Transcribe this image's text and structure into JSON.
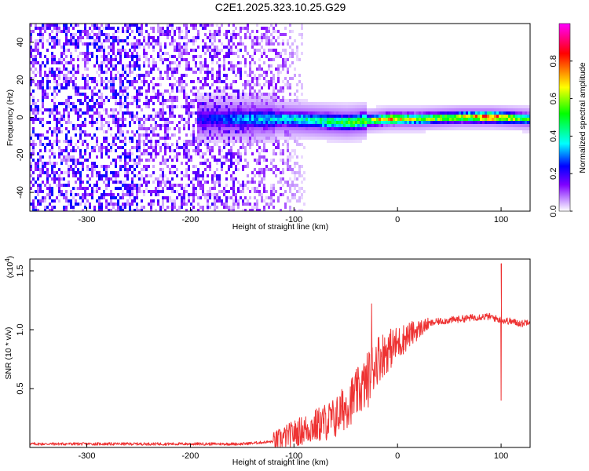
{
  "title": "C2E1.2025.323.10.25.G29",
  "chart_data": [
    {
      "type": "heatmap",
      "xlabel": "Height of straight line (km)",
      "ylabel": "Frequency (Hz)",
      "xlim": [
        -355,
        128
      ],
      "ylim": [
        -50,
        50
      ],
      "xticks": [
        -300,
        -200,
        -100,
        0,
        100
      ],
      "yticks": [
        -40,
        -20,
        0,
        20,
        40
      ],
      "xtick_labels": [
        "-300",
        "-200",
        "-100",
        "0",
        "100"
      ],
      "ytick_labels": [
        "-40",
        "-20",
        "0",
        "20",
        "40"
      ],
      "colorbar": {
        "label": "Normalized spectral amplitude",
        "range": [
          0,
          1
        ],
        "ticks": [
          0.0,
          0.2,
          0.4,
          0.6,
          0.8
        ],
        "tick_labels": [
          "0.0",
          "0.2",
          "0.4",
          "0.6",
          "0.8"
        ],
        "colormap": [
          "#ffffff",
          "#8000ff",
          "#0000ff",
          "#00ffff",
          "#00ff00",
          "#ffff00",
          "#ff0000",
          "#ff00ff"
        ]
      },
      "features": {
        "noise_region_x": [
          -355,
          -115
        ],
        "signal_ridge": [
          {
            "x": -185,
            "freq": 0,
            "amplitude": 0.25
          },
          {
            "x": -150,
            "freq": 0,
            "amplitude": 0.35
          },
          {
            "x": -110,
            "freq": 0,
            "amplitude": 0.4
          },
          {
            "x": -80,
            "freq": -1,
            "amplitude": 0.45
          },
          {
            "x": -50,
            "freq": -2,
            "amplitude": 0.55
          },
          {
            "x": -30,
            "freq": -1,
            "amplitude": 0.6
          },
          {
            "x": -10,
            "freq": 0,
            "amplitude": 0.8
          },
          {
            "x": 20,
            "freq": 0,
            "amplitude": 0.6
          },
          {
            "x": 60,
            "freq": 1,
            "amplitude": 0.65
          },
          {
            "x": 90,
            "freq": 1,
            "amplitude": 0.9
          },
          {
            "x": 125,
            "freq": 0,
            "amplitude": 0.55
          }
        ]
      }
    },
    {
      "type": "line",
      "xlabel": "Height of straight line (km)",
      "ylabel": "SNR (10 * v/v)",
      "y_scale_label": "(x10",
      "y_scale_exp": "4",
      "y_scale_close": ")",
      "xlim": [
        -355,
        128
      ],
      "ylim": [
        0,
        1.6
      ],
      "xticks": [
        -300,
        -200,
        -100,
        0,
        100
      ],
      "yticks": [
        0.5,
        1.0,
        1.5
      ],
      "xtick_labels": [
        "-300",
        "-200",
        "-100",
        "0",
        "100"
      ],
      "ytick_labels": [
        "0.5",
        "1.0",
        "1.5"
      ],
      "series": [
        {
          "name": "SNR",
          "color": "#ee3333",
          "x": [
            -355,
            -300,
            -250,
            -200,
            -150,
            -120,
            -100,
            -80,
            -60,
            -50,
            -40,
            -30,
            -25,
            -20,
            -10,
            0,
            10,
            20,
            30,
            40,
            50,
            60,
            70,
            80,
            90,
            100,
            110,
            120,
            128
          ],
          "y": [
            0.03,
            0.03,
            0.03,
            0.03,
            0.03,
            0.05,
            0.12,
            0.18,
            0.25,
            0.35,
            0.45,
            0.55,
            0.65,
            0.75,
            0.82,
            0.88,
            0.95,
            1.0,
            1.05,
            1.07,
            1.08,
            1.09,
            1.1,
            1.11,
            1.11,
            1.08,
            1.07,
            1.05,
            1.08
          ]
        }
      ],
      "annotations": [
        {
          "x": -25,
          "y": 1.22
        },
        {
          "x": 100,
          "y": 1.56
        },
        {
          "x": 100,
          "y": 0.4
        }
      ]
    }
  ]
}
